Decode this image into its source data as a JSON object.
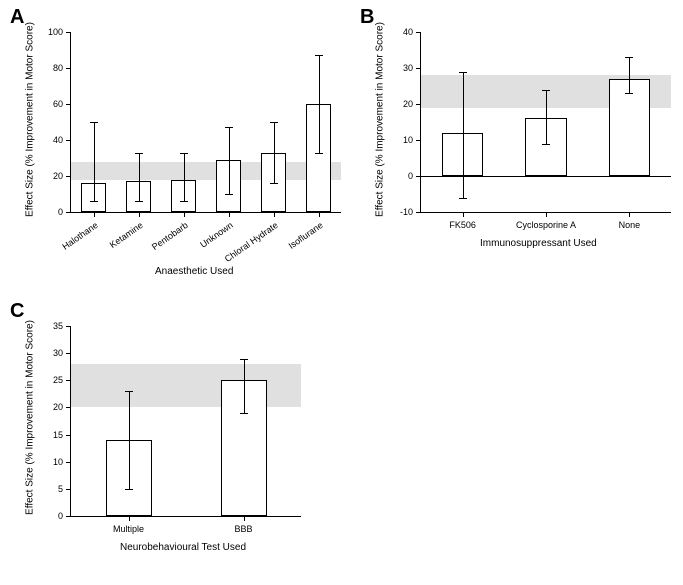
{
  "panelA": {
    "label": "A",
    "label_fontsize": 20,
    "ylabel": "Effect Size (% Improvement in Motor Score)",
    "xlabel": "Anaesthetic Used",
    "ylim": [
      0,
      100
    ],
    "ytick_step": 20,
    "shade_band": [
      18,
      28
    ],
    "bar_color": "#ffffff",
    "border_color": "#000000",
    "shade_color": "#e0e0e0",
    "categories": [
      "Halothane",
      "Ketamine",
      "Pentobarb",
      "Unknown",
      "Chloral Hydrate",
      "Isoflurane"
    ],
    "values": [
      16,
      17,
      18,
      29,
      33,
      60
    ],
    "err_low": [
      6,
      6,
      6,
      10,
      16,
      33
    ],
    "err_high": [
      50,
      33,
      33,
      47,
      50,
      87
    ]
  },
  "panelB": {
    "label": "B",
    "label_fontsize": 20,
    "ylabel": "Effect Size (% Improvement in Motor Score)",
    "xlabel": "Immunosuppressant Used",
    "ylim": [
      -10,
      40
    ],
    "ytick_step": 10,
    "shade_band": [
      19,
      28
    ],
    "bar_color": "#ffffff",
    "border_color": "#000000",
    "shade_color": "#e0e0e0",
    "categories": [
      "FK506",
      "Cyclosporine A",
      "None"
    ],
    "values": [
      12,
      16,
      27
    ],
    "err_low": [
      -6,
      9,
      23
    ],
    "err_high": [
      29,
      24,
      33
    ]
  },
  "panelC": {
    "label": "C",
    "label_fontsize": 20,
    "ylabel": "Effect Size (% Improvement in Motor Score)",
    "xlabel": "Neurobehavioural Test Used",
    "ylim": [
      0,
      35
    ],
    "ytick_step": 5,
    "shade_band": [
      20,
      28
    ],
    "bar_color": "#ffffff",
    "border_color": "#000000",
    "shade_color": "#e0e0e0",
    "categories": [
      "Multiple",
      "BBB"
    ],
    "values": [
      14,
      25
    ],
    "err_low": [
      5,
      19
    ],
    "err_high": [
      23,
      29
    ]
  }
}
